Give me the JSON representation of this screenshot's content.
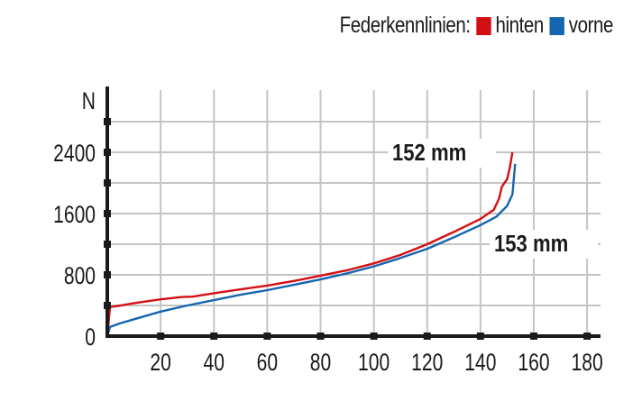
{
  "legend": {
    "title": "Federkennlinien:",
    "items": [
      {
        "label": "hinten",
        "color": "#d40f14"
      },
      {
        "label": "vorne",
        "color": "#1565b0"
      }
    ]
  },
  "annotations": [
    {
      "text": "152 mm",
      "series": "hinten"
    },
    {
      "text": "153 mm",
      "series": "vorne"
    }
  ],
  "chart_data": {
    "type": "line",
    "title": "Federkennlinien",
    "xlabel": "mm",
    "ylabel": "N",
    "xlim": [
      0,
      185
    ],
    "ylim": [
      0,
      2900
    ],
    "x_ticks": [
      20,
      40,
      60,
      80,
      100,
      120,
      140,
      160,
      180
    ],
    "y_ticks_labeled": [
      0,
      800,
      1600,
      2400
    ],
    "y_ticks_minor": [
      400,
      1200,
      2000,
      2800
    ],
    "y_axis_unit_label": "N",
    "grid": true,
    "legend_position": "top-right",
    "series": [
      {
        "name": "hinten",
        "color": "#d40f14",
        "end_label": "152 mm",
        "points": [
          [
            0,
            0
          ],
          [
            1,
            380
          ],
          [
            5,
            400
          ],
          [
            10,
            430
          ],
          [
            20,
            480
          ],
          [
            28,
            510
          ],
          [
            32,
            515
          ],
          [
            40,
            560
          ],
          [
            50,
            610
          ],
          [
            60,
            660
          ],
          [
            70,
            720
          ],
          [
            80,
            790
          ],
          [
            90,
            860
          ],
          [
            100,
            950
          ],
          [
            110,
            1060
          ],
          [
            120,
            1200
          ],
          [
            130,
            1360
          ],
          [
            140,
            1530
          ],
          [
            145,
            1650
          ],
          [
            147,
            1800
          ],
          [
            148,
            1950
          ],
          [
            150,
            2050
          ],
          [
            151,
            2200
          ],
          [
            152,
            2400
          ]
        ]
      },
      {
        "name": "vorne",
        "color": "#1565b0",
        "end_label": "153 mm",
        "points": [
          [
            0,
            0
          ],
          [
            1,
            120
          ],
          [
            5,
            170
          ],
          [
            10,
            220
          ],
          [
            20,
            320
          ],
          [
            30,
            400
          ],
          [
            40,
            470
          ],
          [
            50,
            540
          ],
          [
            60,
            600
          ],
          [
            70,
            670
          ],
          [
            80,
            740
          ],
          [
            90,
            820
          ],
          [
            100,
            910
          ],
          [
            110,
            1020
          ],
          [
            120,
            1140
          ],
          [
            130,
            1290
          ],
          [
            140,
            1450
          ],
          [
            146,
            1560
          ],
          [
            150,
            1700
          ],
          [
            152,
            1850
          ],
          [
            153,
            2250
          ]
        ]
      }
    ]
  }
}
